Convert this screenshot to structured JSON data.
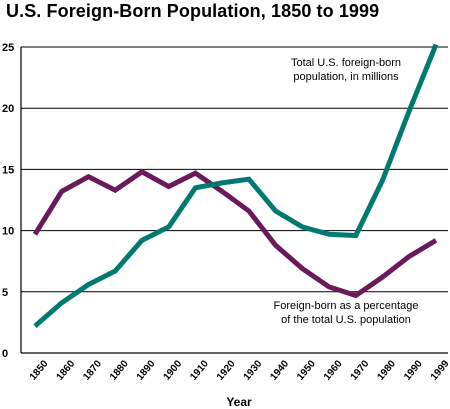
{
  "chart_data": {
    "type": "line",
    "title": "U.S. Foreign-Born Population, 1850 to 1999",
    "xlabel": "Year",
    "ylabel": "",
    "x": [
      1850,
      1860,
      1870,
      1880,
      1890,
      1900,
      1910,
      1920,
      1930,
      1940,
      1950,
      1960,
      1970,
      1980,
      1990,
      1999
    ],
    "x_tick_labels": [
      "1850",
      "1860",
      "1870",
      "1880",
      "1890",
      "1900",
      "1910",
      "1920",
      "1930",
      "1940",
      "1950",
      "1960",
      "1970",
      "1980",
      "1990",
      "1999"
    ],
    "y_ticks": [
      0,
      5,
      10,
      15,
      20,
      25
    ],
    "y_tick_labels": [
      "0",
      "5",
      "10",
      "15",
      "20",
      "25"
    ],
    "ylim": [
      0,
      25
    ],
    "grid": "horizontal",
    "series": [
      {
        "name": "Foreign-born as a percentage of the total U.S. population",
        "color": "#6a1a5a",
        "values": [
          9.7,
          13.2,
          14.4,
          13.3,
          14.8,
          13.6,
          14.7,
          13.2,
          11.6,
          8.8,
          6.9,
          5.4,
          4.7,
          6.2,
          7.9,
          9.2
        ]
      },
      {
        "name": "Total U.S. foreign-born population, in millions",
        "color": "#007a70",
        "values": [
          2.2,
          4.1,
          5.6,
          6.7,
          9.2,
          10.3,
          13.5,
          13.9,
          14.2,
          11.6,
          10.3,
          9.7,
          9.6,
          14.1,
          19.8,
          25.2
        ]
      }
    ],
    "annotations": [
      {
        "series": 1,
        "lines": [
          "Total U.S. foreign-born",
          "population, in millions"
        ]
      },
      {
        "series": 0,
        "lines": [
          "Foreign-born as a percentage",
          "of the total U.S. population"
        ]
      }
    ]
  }
}
